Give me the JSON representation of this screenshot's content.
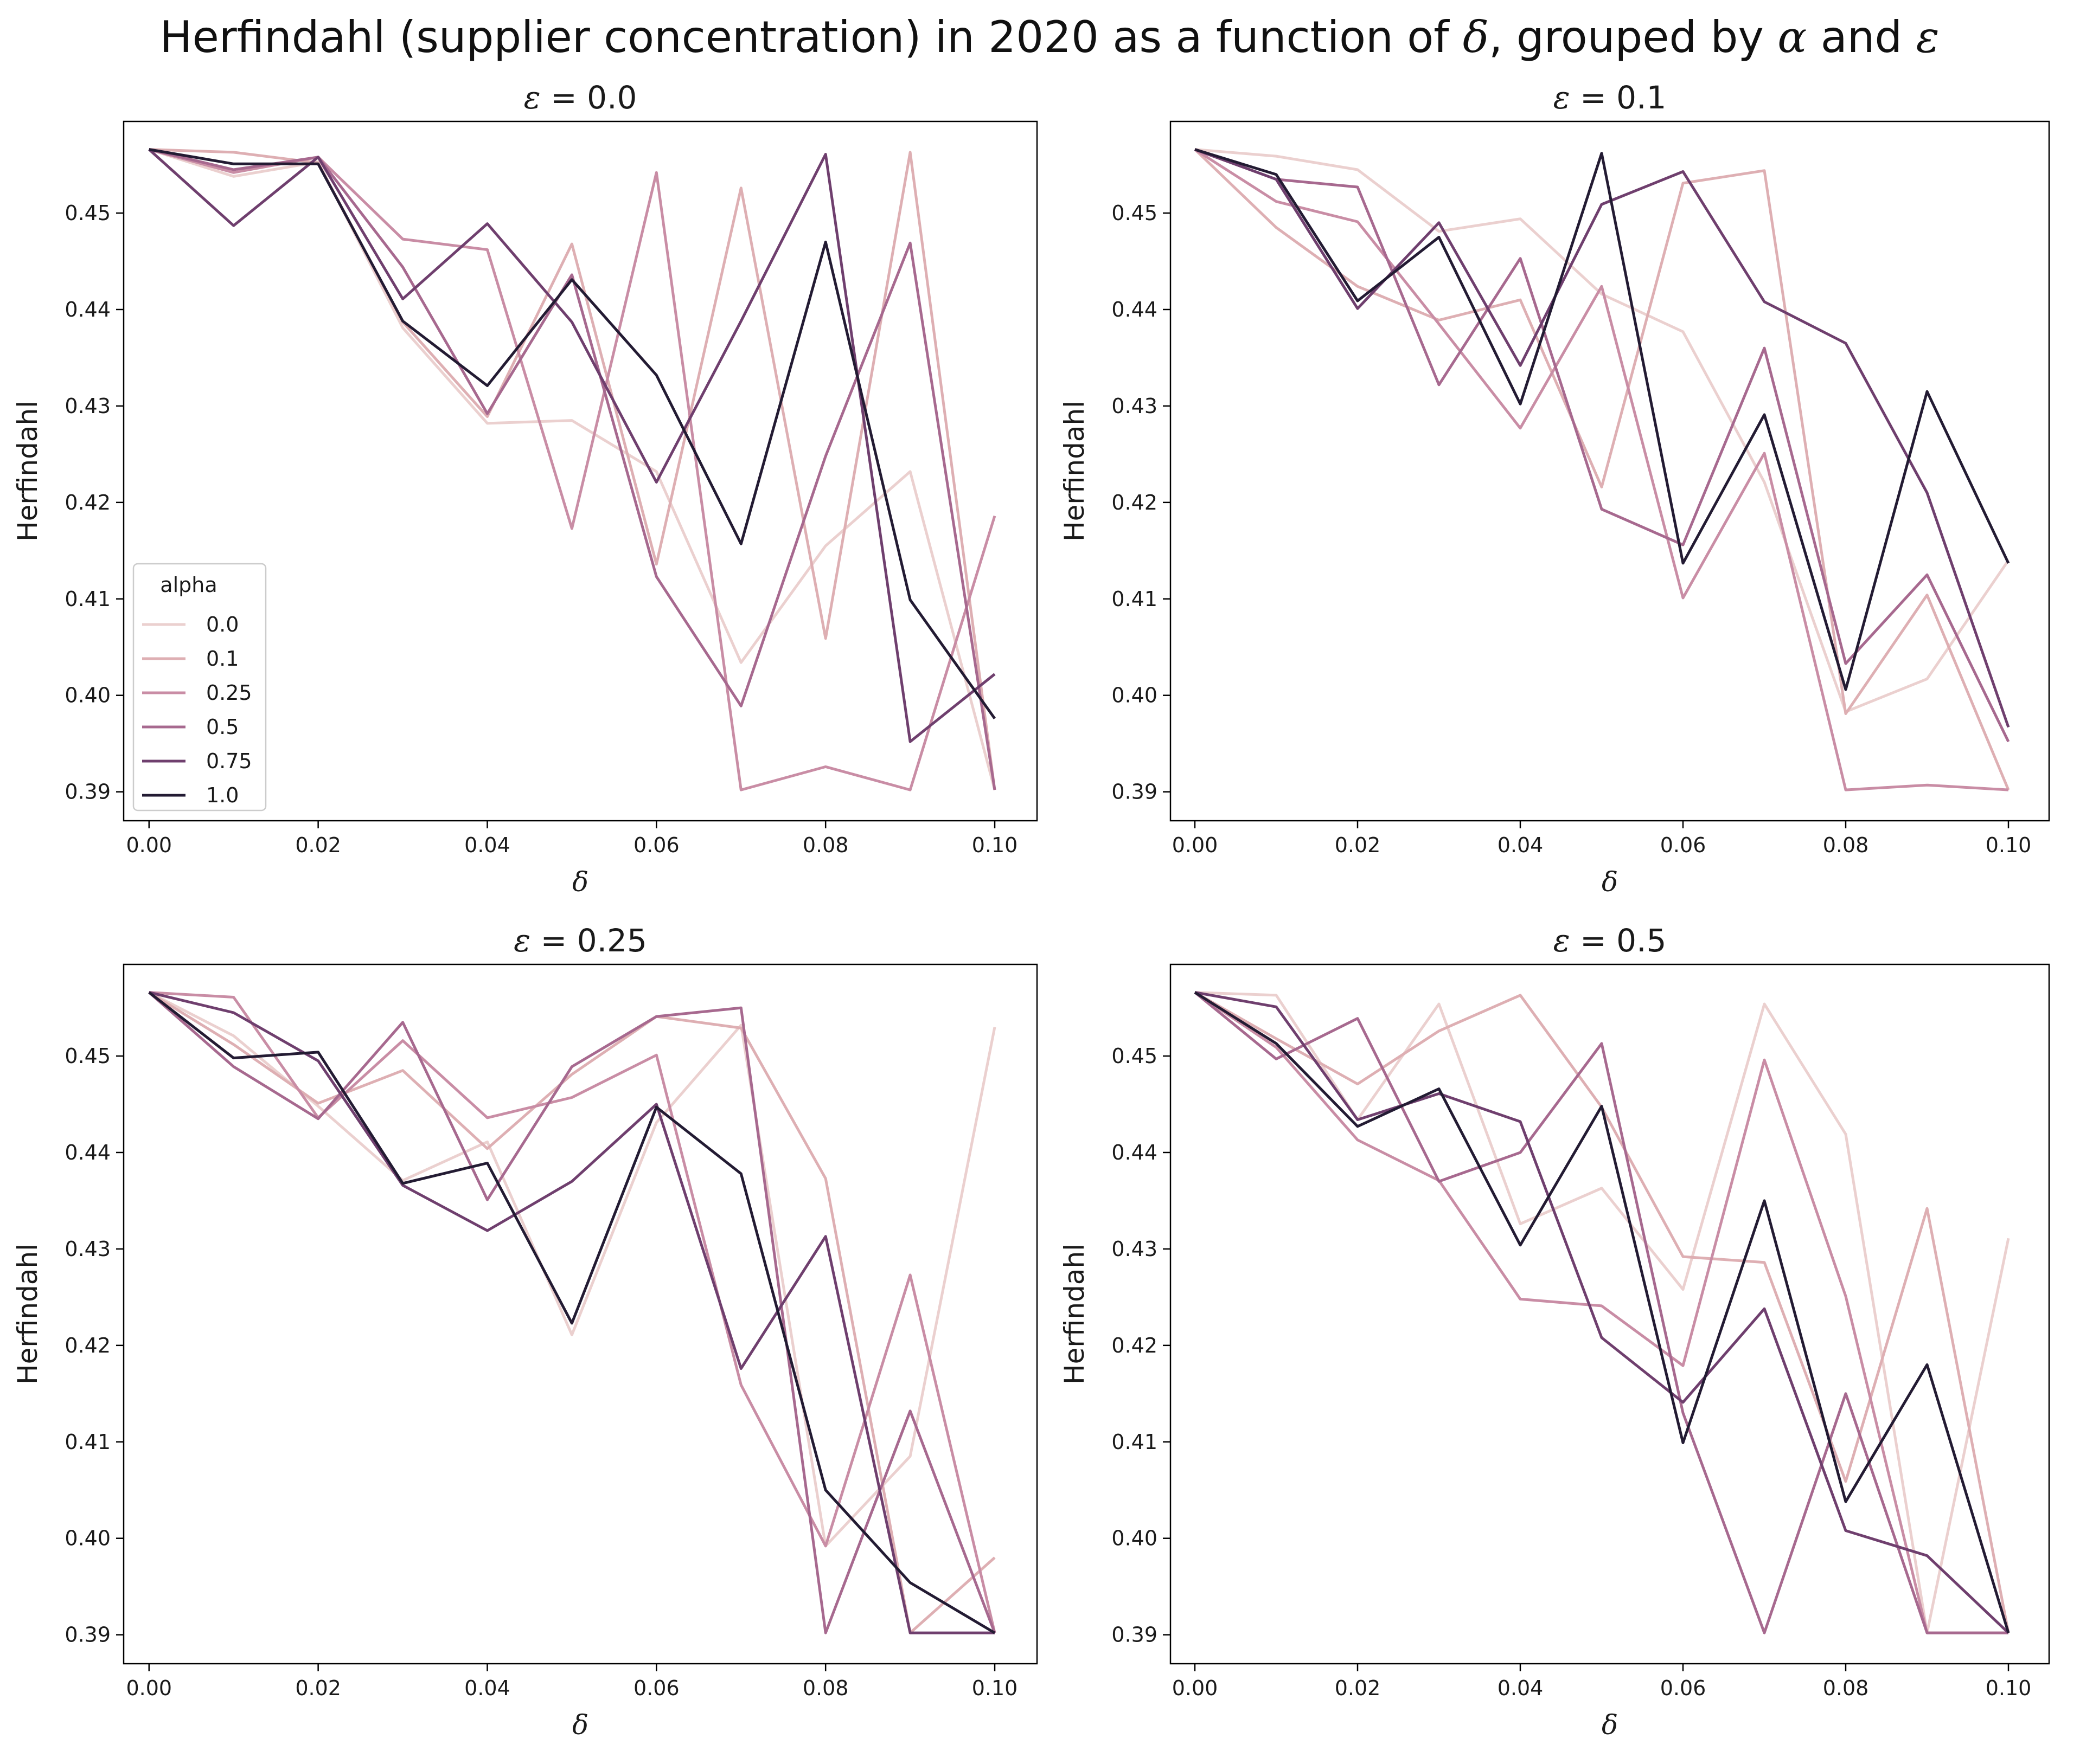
{
  "figure": {
    "title": "Herfindahl (supplier concentration) in 2020 as a function of δ, grouped by α and ε"
  },
  "chart_data": [
    {
      "type": "line",
      "title": "ε = 0.0",
      "xlabel": "δ",
      "ylabel": "Herfindahl",
      "xlim": [
        -0.003,
        0.105
      ],
      "ylim": [
        0.387,
        0.4595
      ],
      "x_ticks": [
        "0.00",
        "0.02",
        "0.04",
        "0.06",
        "0.08",
        "0.10"
      ],
      "y_ticks": [
        "0.39",
        "0.40",
        "0.41",
        "0.42",
        "0.43",
        "0.44",
        "0.45"
      ],
      "legend": {
        "title": "alpha",
        "placement": "lower-left"
      },
      "x": [
        0.0,
        0.01,
        0.02,
        0.03,
        0.04,
        0.05,
        0.06,
        0.07,
        0.08,
        0.09,
        0.1
      ],
      "series": [
        {
          "name": "0.0",
          "color": "#ebd0cf",
          "values": [
            0.4566,
            0.4538,
            0.4553,
            0.4381,
            0.4282,
            0.4285,
            0.4232,
            0.4034,
            0.4155,
            0.4232,
            0.3902
          ]
        },
        {
          "name": "0.1",
          "color": "#deafb3",
          "values": [
            0.4566,
            0.4563,
            0.4552,
            0.4387,
            0.4289,
            0.4468,
            0.4136,
            0.4526,
            0.4059,
            0.4563,
            0.3902
          ]
        },
        {
          "name": "0.25",
          "color": "#c98da5",
          "values": [
            0.4566,
            0.4542,
            0.4558,
            0.4473,
            0.4462,
            0.4173,
            0.4542,
            0.3902,
            0.3926,
            0.3902,
            0.4186
          ]
        },
        {
          "name": "0.5",
          "color": "#a7698f",
          "values": [
            0.4566,
            0.4545,
            0.4558,
            0.4444,
            0.4292,
            0.4436,
            0.4123,
            0.3989,
            0.4248,
            0.4469,
            0.3902
          ]
        },
        {
          "name": "0.75",
          "color": "#6f3f6e",
          "values": [
            0.4566,
            0.4487,
            0.4558,
            0.4411,
            0.4489,
            0.4387,
            0.4221,
            0.4388,
            0.4561,
            0.3952,
            0.4022
          ]
        },
        {
          "name": "1.0",
          "color": "#231b33",
          "values": [
            0.4566,
            0.4551,
            0.4551,
            0.4388,
            0.4321,
            0.4431,
            0.4332,
            0.4157,
            0.447,
            0.4099,
            0.3976
          ]
        }
      ]
    },
    {
      "type": "line",
      "title": "ε = 0.1",
      "xlabel": "δ",
      "ylabel": "Herfindahl",
      "xlim": [
        -0.003,
        0.105
      ],
      "ylim": [
        0.387,
        0.4595
      ],
      "x_ticks": [
        "0.00",
        "0.02",
        "0.04",
        "0.06",
        "0.08",
        "0.10"
      ],
      "y_ticks": [
        "0.39",
        "0.40",
        "0.41",
        "0.42",
        "0.43",
        "0.44",
        "0.45"
      ],
      "x": [
        0.0,
        0.01,
        0.02,
        0.03,
        0.04,
        0.05,
        0.06,
        0.07,
        0.08,
        0.09,
        0.1
      ],
      "series": [
        {
          "name": "0.0",
          "color": "#ebd0cf",
          "values": [
            0.4566,
            0.4559,
            0.4545,
            0.4481,
            0.4494,
            0.4416,
            0.4377,
            0.4221,
            0.3983,
            0.4017,
            0.414
          ]
        },
        {
          "name": "0.1",
          "color": "#deafb3",
          "values": [
            0.4566,
            0.4485,
            0.4424,
            0.4389,
            0.441,
            0.4216,
            0.4531,
            0.4544,
            0.3981,
            0.4104,
            0.3902
          ]
        },
        {
          "name": "0.25",
          "color": "#c98da5",
          "values": [
            0.4566,
            0.4512,
            0.4491,
            0.4385,
            0.4277,
            0.4424,
            0.4101,
            0.4251,
            0.3902,
            0.3907,
            0.3902
          ]
        },
        {
          "name": "0.5",
          "color": "#a7698f",
          "values": [
            0.4566,
            0.4535,
            0.4527,
            0.4322,
            0.4453,
            0.4193,
            0.4156,
            0.436,
            0.4033,
            0.4125,
            0.3952
          ]
        },
        {
          "name": "0.75",
          "color": "#6f3f6e",
          "values": [
            0.4566,
            0.4535,
            0.4401,
            0.449,
            0.4342,
            0.4509,
            0.4543,
            0.4408,
            0.4365,
            0.421,
            0.3967
          ]
        },
        {
          "name": "1.0",
          "color": "#231b33",
          "values": [
            0.4566,
            0.454,
            0.4409,
            0.4475,
            0.4302,
            0.4562,
            0.4137,
            0.4291,
            0.4006,
            0.4315,
            0.4137
          ]
        }
      ]
    },
    {
      "type": "line",
      "title": "ε = 0.25",
      "xlabel": "δ",
      "ylabel": "Herfindahl",
      "xlim": [
        -0.003,
        0.105
      ],
      "ylim": [
        0.387,
        0.4595
      ],
      "x_ticks": [
        "0.00",
        "0.02",
        "0.04",
        "0.06",
        "0.08",
        "0.10"
      ],
      "y_ticks": [
        "0.39",
        "0.40",
        "0.41",
        "0.42",
        "0.43",
        "0.44",
        "0.45"
      ],
      "x": [
        0.0,
        0.01,
        0.02,
        0.03,
        0.04,
        0.05,
        0.06,
        0.07,
        0.08,
        0.09,
        0.1
      ],
      "series": [
        {
          "name": "0.0",
          "color": "#ebd0cf",
          "values": [
            0.4566,
            0.4521,
            0.4448,
            0.4371,
            0.4411,
            0.4211,
            0.4431,
            0.4532,
            0.3992,
            0.4085,
            0.453
          ]
        },
        {
          "name": "0.1",
          "color": "#deafb3",
          "values": [
            0.4566,
            0.4512,
            0.4451,
            0.4485,
            0.4404,
            0.4481,
            0.4541,
            0.4529,
            0.4373,
            0.3902,
            0.398
          ]
        },
        {
          "name": "0.25",
          "color": "#c98da5",
          "values": [
            0.4566,
            0.4561,
            0.4436,
            0.4516,
            0.4436,
            0.4457,
            0.4501,
            0.4159,
            0.3992,
            0.4273,
            0.3902
          ]
        },
        {
          "name": "0.5",
          "color": "#a7698f",
          "values": [
            0.4566,
            0.4489,
            0.4435,
            0.4535,
            0.4351,
            0.4489,
            0.4541,
            0.455,
            0.3902,
            0.4132,
            0.3902
          ]
        },
        {
          "name": "0.75",
          "color": "#6f3f6e",
          "values": [
            0.4566,
            0.4545,
            0.4495,
            0.4366,
            0.4319,
            0.437,
            0.445,
            0.4176,
            0.4313,
            0.3902,
            0.3902
          ]
        },
        {
          "name": "1.0",
          "color": "#231b33",
          "values": [
            0.4566,
            0.4498,
            0.4504,
            0.4368,
            0.4389,
            0.4223,
            0.4447,
            0.4378,
            0.405,
            0.3954,
            0.3902
          ]
        }
      ]
    },
    {
      "type": "line",
      "title": "ε = 0.5",
      "xlabel": "δ",
      "ylabel": "Herfindahl",
      "xlim": [
        -0.003,
        0.105
      ],
      "ylim": [
        0.387,
        0.4595
      ],
      "x_ticks": [
        "0.00",
        "0.02",
        "0.04",
        "0.06",
        "0.08",
        "0.10"
      ],
      "y_ticks": [
        "0.39",
        "0.40",
        "0.41",
        "0.42",
        "0.43",
        "0.44",
        "0.45"
      ],
      "x": [
        0.0,
        0.01,
        0.02,
        0.03,
        0.04,
        0.05,
        0.06,
        0.07,
        0.08,
        0.09,
        0.1
      ],
      "series": [
        {
          "name": "0.0",
          "color": "#ebd0cf",
          "values": [
            0.4566,
            0.4563,
            0.4434,
            0.4554,
            0.4326,
            0.4363,
            0.4258,
            0.4554,
            0.4419,
            0.3902,
            0.4311
          ]
        },
        {
          "name": "0.1",
          "color": "#deafb3",
          "values": [
            0.4566,
            0.4518,
            0.4471,
            0.4526,
            0.4563,
            0.4447,
            0.4292,
            0.4286,
            0.4059,
            0.4342,
            0.3902
          ]
        },
        {
          "name": "0.25",
          "color": "#c98da5",
          "values": [
            0.4566,
            0.4509,
            0.4413,
            0.4371,
            0.4248,
            0.4241,
            0.4179,
            0.4496,
            0.4251,
            0.3902,
            0.3902
          ]
        },
        {
          "name": "0.5",
          "color": "#a7698f",
          "values": [
            0.4566,
            0.4497,
            0.4539,
            0.437,
            0.44,
            0.4513,
            0.413,
            0.3902,
            0.415,
            0.3902,
            0.3902
          ]
        },
        {
          "name": "0.75",
          "color": "#6f3f6e",
          "values": [
            0.4566,
            0.4551,
            0.4434,
            0.4461,
            0.4432,
            0.4208,
            0.4141,
            0.4238,
            0.4008,
            0.3982,
            0.3902
          ]
        },
        {
          "name": "1.0",
          "color": "#231b33",
          "values": [
            0.4566,
            0.4513,
            0.4427,
            0.4466,
            0.4304,
            0.4448,
            0.4099,
            0.435,
            0.4038,
            0.418,
            0.3902
          ]
        }
      ]
    }
  ]
}
